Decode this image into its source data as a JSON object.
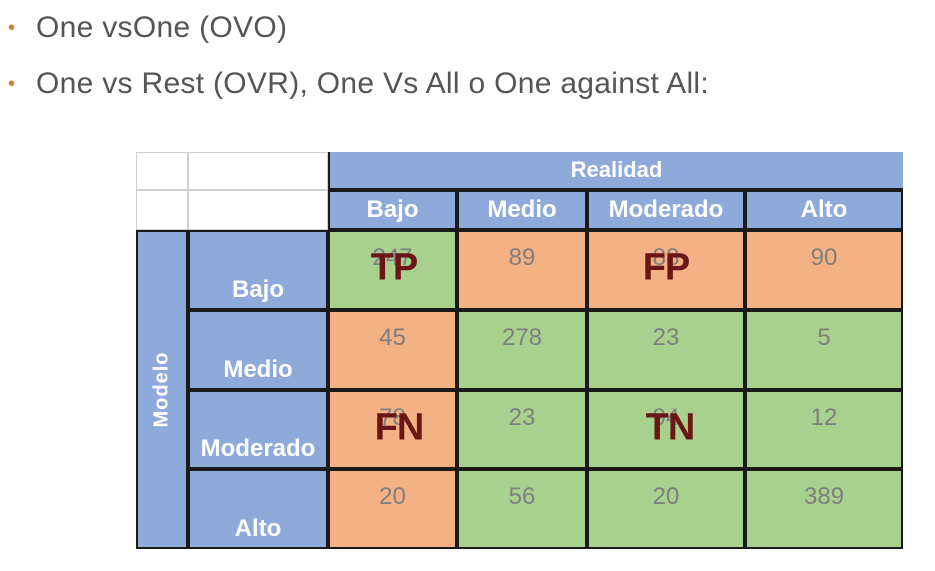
{
  "bullets": [
    {
      "text": "One vsOne (OVO)"
    },
    {
      "text": "One vs Rest (OVR), One Vs All o One against All:"
    }
  ],
  "colors": {
    "bullet": "#c9822b",
    "header": "#8eaadb",
    "positive_cell": "#a9d18e",
    "negative_cell": "#f4b183",
    "overlay_text": "#6a1616"
  },
  "matrix": {
    "top_header": "Realidad",
    "side_header": "Modelo",
    "columns": [
      "Bajo",
      "Medio",
      "Moderado",
      "Alto"
    ],
    "rows": [
      {
        "label": "Bajo",
        "values": [
          "247",
          "89",
          "88",
          "90"
        ]
      },
      {
        "label": "Medio",
        "values": [
          "45",
          "278",
          "23",
          "5"
        ]
      },
      {
        "label": "Moderado",
        "values": [
          "78",
          "23",
          "94",
          "12"
        ]
      },
      {
        "label": "Alto",
        "values": [
          "20",
          "56",
          "20",
          "389"
        ]
      }
    ],
    "overlays": {
      "tp": "TP",
      "fp": "FP",
      "fn": "FN",
      "tn": "TN"
    }
  }
}
